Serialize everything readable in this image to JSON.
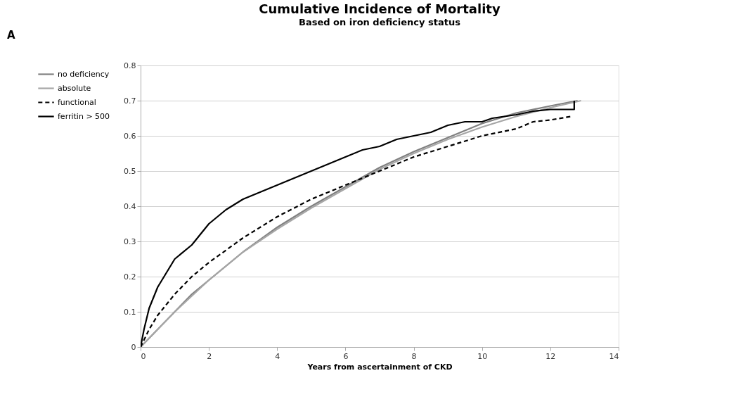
{
  "chart_data": {
    "type": "line",
    "title": "Cumulative Incidence of Mortality",
    "subtitle": "Based on iron deficiency status",
    "xlabel": "Years from ascertainment of CKD",
    "annotations": [
      "A"
    ],
    "xlim": [
      0,
      14
    ],
    "xticks": [
      0,
      2,
      4,
      6,
      8,
      10,
      12,
      14
    ],
    "ylim": [
      0,
      0.8
    ],
    "yticks": [
      0,
      0.1,
      0.2,
      0.3,
      0.4,
      0.5,
      0.6,
      0.7,
      0.8
    ],
    "grid": "y",
    "legend": "left",
    "series": [
      {
        "name": "no deficiency",
        "color": "#808080",
        "line_style": "solid",
        "x": [
          0,
          0.5,
          1,
          1.5,
          2,
          3,
          4,
          5,
          6,
          7,
          8,
          9,
          10,
          11,
          12,
          12.8
        ],
        "values": [
          0,
          0.05,
          0.1,
          0.15,
          0.19,
          0.27,
          0.34,
          0.4,
          0.455,
          0.51,
          0.555,
          0.595,
          0.635,
          0.665,
          0.685,
          0.7
        ]
      },
      {
        "name": "absolute",
        "color": "#a6a6a6",
        "line_style": "solid",
        "x": [
          0,
          0.5,
          1,
          1.5,
          2,
          3,
          4,
          5,
          6,
          7,
          8,
          9,
          10,
          11,
          12,
          12.9
        ],
        "values": [
          0,
          0.05,
          0.1,
          0.145,
          0.19,
          0.27,
          0.335,
          0.395,
          0.45,
          0.505,
          0.55,
          0.59,
          0.625,
          0.655,
          0.68,
          0.7
        ]
      },
      {
        "name": "functional",
        "color": "#000000",
        "line_style": "dashed",
        "x": [
          0,
          0.25,
          0.5,
          1,
          1.5,
          2,
          3,
          4,
          5,
          6,
          7,
          8,
          9,
          10,
          11,
          11.5,
          12,
          12.6
        ],
        "values": [
          0,
          0.05,
          0.09,
          0.15,
          0.2,
          0.24,
          0.31,
          0.37,
          0.42,
          0.46,
          0.5,
          0.54,
          0.57,
          0.6,
          0.62,
          0.64,
          0.645,
          0.655
        ]
      },
      {
        "name": "ferritin > 500",
        "color": "#000000",
        "line_style": "solid",
        "x": [
          0,
          0.1,
          0.25,
          0.5,
          0.75,
          1,
          1.5,
          2,
          2.5,
          3,
          3.5,
          4,
          4.5,
          5,
          5.5,
          6,
          6.5,
          7,
          7.5,
          8,
          8.5,
          9,
          9.5,
          10,
          10.3,
          11,
          11.5,
          12,
          12.7,
          12.7
        ],
        "values": [
          0,
          0.05,
          0.11,
          0.17,
          0.21,
          0.25,
          0.29,
          0.35,
          0.39,
          0.42,
          0.44,
          0.46,
          0.48,
          0.5,
          0.52,
          0.54,
          0.56,
          0.57,
          0.59,
          0.6,
          0.61,
          0.63,
          0.64,
          0.64,
          0.65,
          0.66,
          0.67,
          0.675,
          0.675,
          0.7
        ]
      }
    ]
  }
}
